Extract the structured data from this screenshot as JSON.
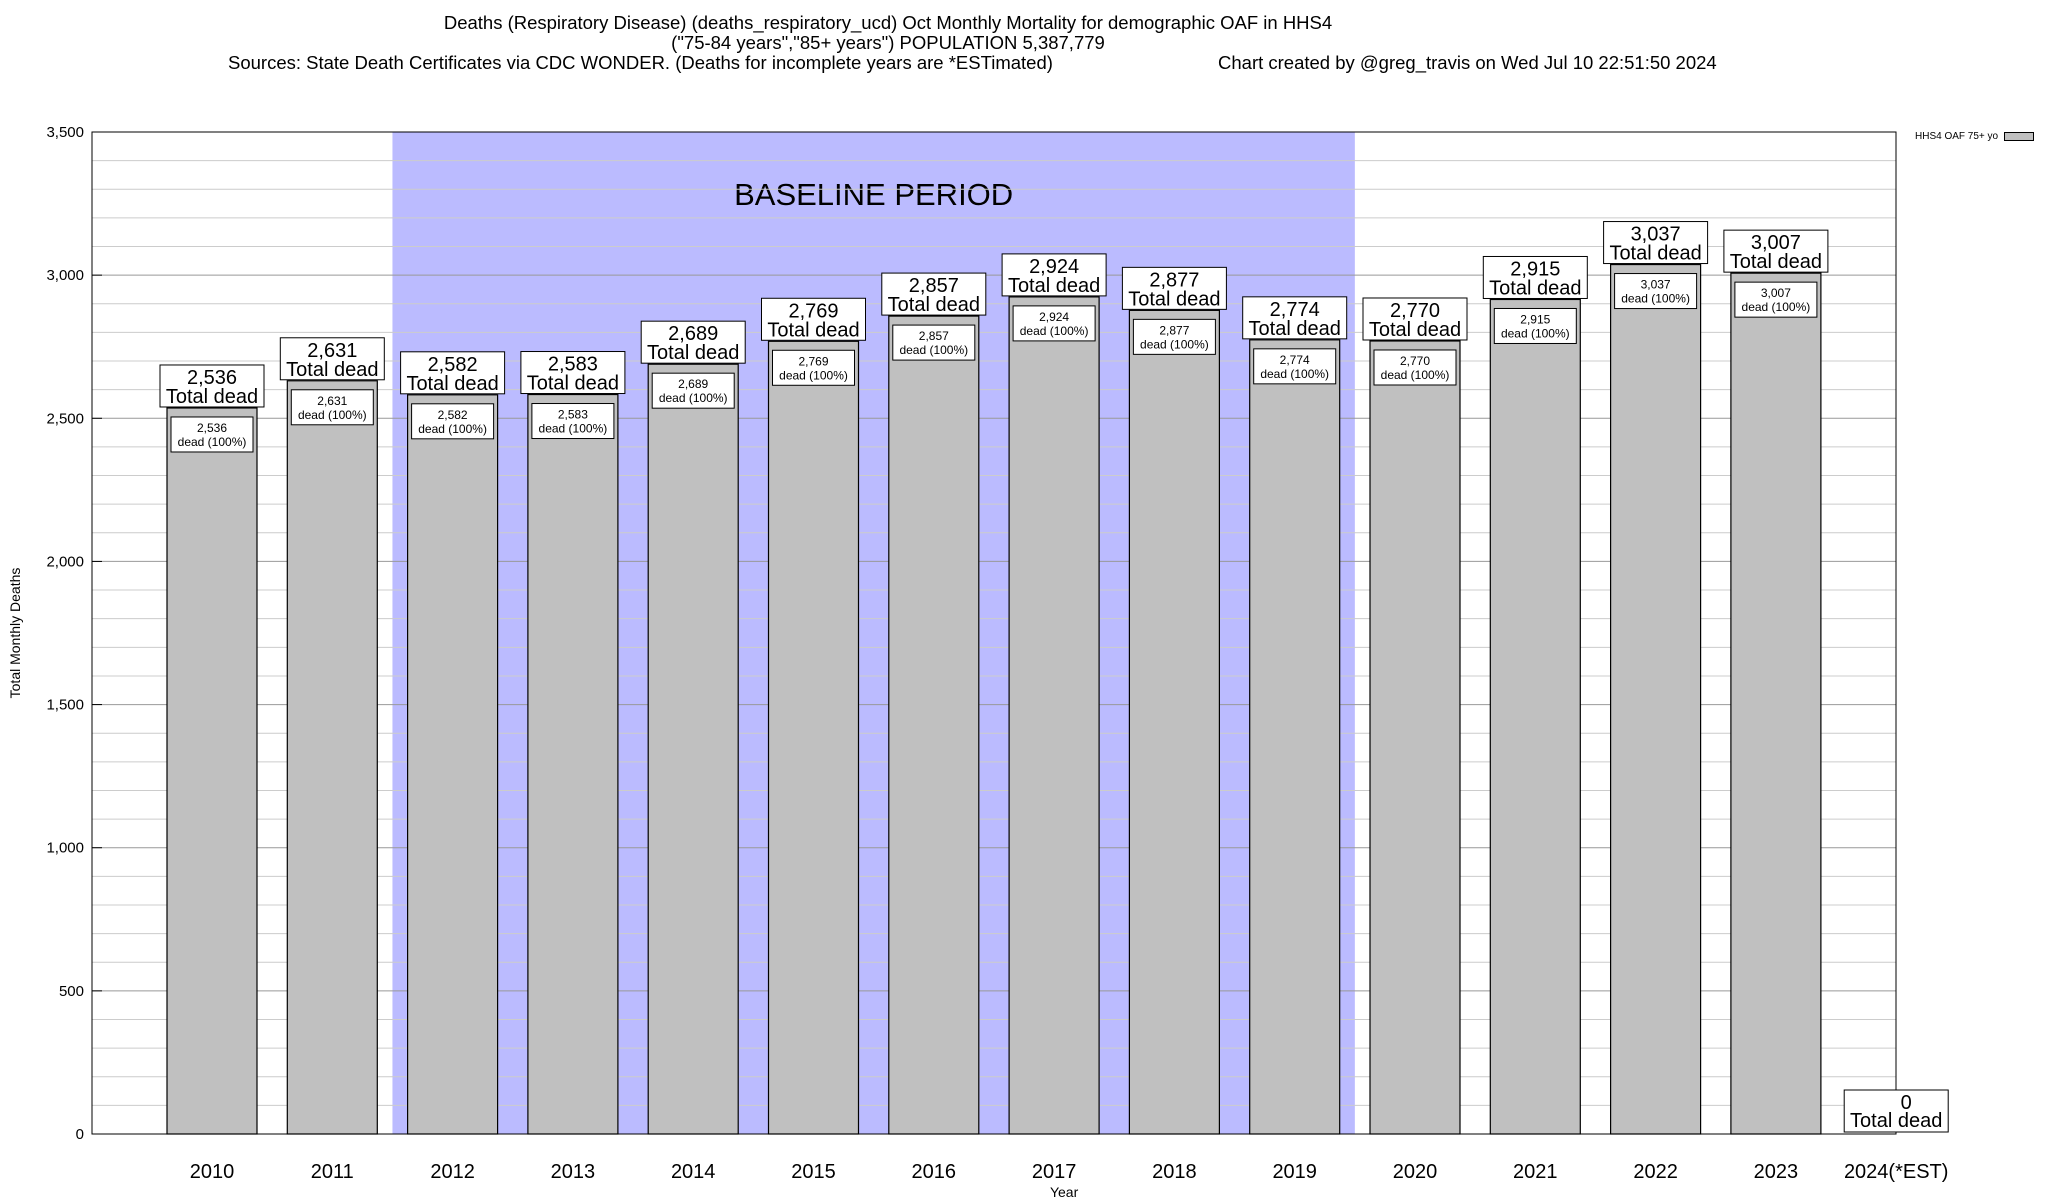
{
  "titles": {
    "line1": "Deaths (Respiratory Disease) (deaths_respiratory_ucd) Oct Monthly Mortality for demographic OAF in HHS4",
    "line2": "(\"75-84 years\",\"85+ years\") POPULATION 5,387,779",
    "line3": "Sources: State Death Certificates via CDC WONDER. (Deaths for incomplete years are *ESTimated)",
    "line4": "Chart created by @greg_travis on Wed Jul 10 22:51:50 2024"
  },
  "legend": {
    "label": "HHS4 OAF 75+ yo",
    "color": "#c0c0c0"
  },
  "chart_data": {
    "type": "bar",
    "title": "Deaths (Respiratory Disease) (deaths_respiratory_ucd) Oct Monthly Mortality for demographic OAF in HHS4",
    "xlabel": "Year",
    "ylabel": "Total Monthly Deaths",
    "ylim": [
      0,
      3500
    ],
    "yticks": [
      0,
      500,
      1000,
      1500,
      2000,
      2500,
      3000,
      3500
    ],
    "ytick_labels": [
      "0",
      "500",
      "1,000",
      "1,500",
      "2,000",
      "2,500",
      "3,000",
      "3,500"
    ],
    "categories": [
      "2010",
      "2011",
      "2012",
      "2013",
      "2014",
      "2015",
      "2016",
      "2017",
      "2018",
      "2019",
      "2020",
      "2021",
      "2022",
      "2023",
      "2024(*EST)"
    ],
    "series": [
      {
        "name": "HHS4 OAF 75+ yo",
        "values": [
          2536,
          2631,
          2582,
          2583,
          2689,
          2769,
          2857,
          2924,
          2877,
          2774,
          2770,
          2915,
          3037,
          3007,
          0
        ],
        "value_labels": [
          "2,536",
          "2,631",
          "2,582",
          "2,583",
          "2,689",
          "2,769",
          "2,857",
          "2,924",
          "2,877",
          "2,774",
          "2,770",
          "2,915",
          "3,037",
          "3,007",
          "0"
        ]
      }
    ],
    "label_top_suffix": "Total dead",
    "label_inner_suffix": "dead (100%)",
    "baseline": {
      "label": "BASELINE PERIOD",
      "from": "2012",
      "to": "2019",
      "color": "#bbbbff"
    },
    "bar_color": "#c0c0c0",
    "grid": true,
    "legend_position": "top-right"
  }
}
